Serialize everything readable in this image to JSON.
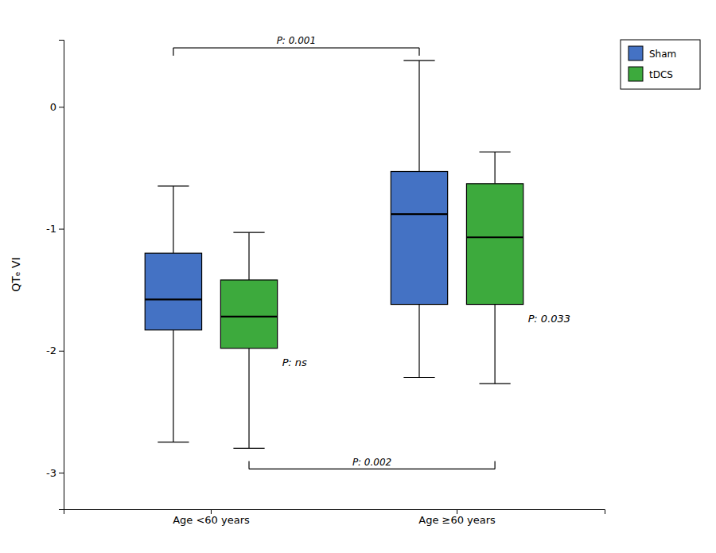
{
  "chart_data": {
    "type": "box",
    "categories": [
      "Age <60 years",
      "Age ≥60 years"
    ],
    "ylabel": "QTₑ VI",
    "ylim": [
      -3.3,
      0.55
    ],
    "yticks": [
      0,
      -1,
      -2,
      -3
    ],
    "grid": false,
    "legend": "upper right",
    "series": [
      {
        "name": "Sham",
        "color": "#4472C4",
        "values": [
          {
            "q1": -1.83,
            "median": -1.58,
            "q3": -1.2,
            "whisker_low": -2.75,
            "whisker_high": -0.65
          },
          {
            "q1": -1.62,
            "median": -0.88,
            "q3": -0.53,
            "whisker_low": -2.22,
            "whisker_high": 0.38
          }
        ]
      },
      {
        "name": "tDCS",
        "color": "#3daa3d",
        "values": [
          {
            "q1": -1.98,
            "median": -1.72,
            "q3": -1.42,
            "whisker_low": -2.8,
            "whisker_high": -1.03
          },
          {
            "q1": -1.62,
            "median": -1.07,
            "q3": -0.63,
            "whisker_low": -2.27,
            "whisker_high": -0.37
          }
        ]
      }
    ],
    "annotations": [
      {
        "text": "P: ns",
        "category": "Age <60 years"
      },
      {
        "text": "P: 0.033",
        "category": "Age ≥60 years"
      }
    ],
    "brackets": [
      {
        "text": "P: 0.001",
        "series": "Sham",
        "position": "top"
      },
      {
        "text": "P: 0.002",
        "series": "tDCS",
        "position": "bottom"
      }
    ]
  }
}
